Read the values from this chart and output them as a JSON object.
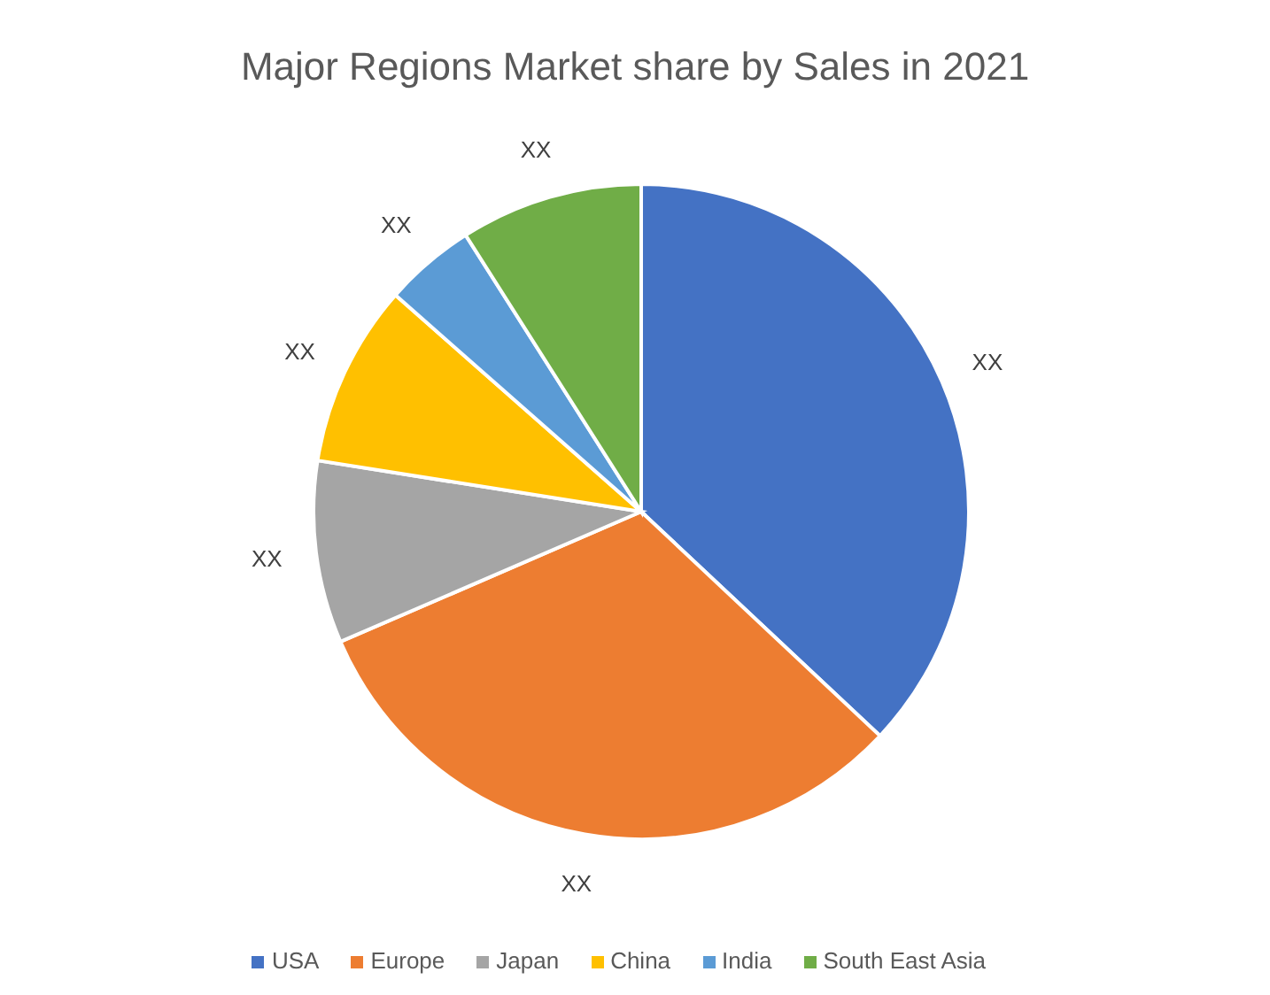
{
  "chart_data": {
    "type": "pie",
    "title": "Major Regions Market share by Sales in 2021",
    "categories": [
      "USA",
      "Europe",
      "Japan",
      "China",
      "India",
      "South East Asia"
    ],
    "values": [
      37,
      31.5,
      9,
      9,
      4.5,
      9
    ],
    "colors": [
      "#4472c4",
      "#ed7d31",
      "#a5a5a5",
      "#ffc000",
      "#5b9bd5",
      "#70ad47"
    ],
    "value_labels": [
      "XX",
      "XX",
      "XX",
      "XX",
      "XX",
      "XX"
    ],
    "legend": "bottom"
  }
}
